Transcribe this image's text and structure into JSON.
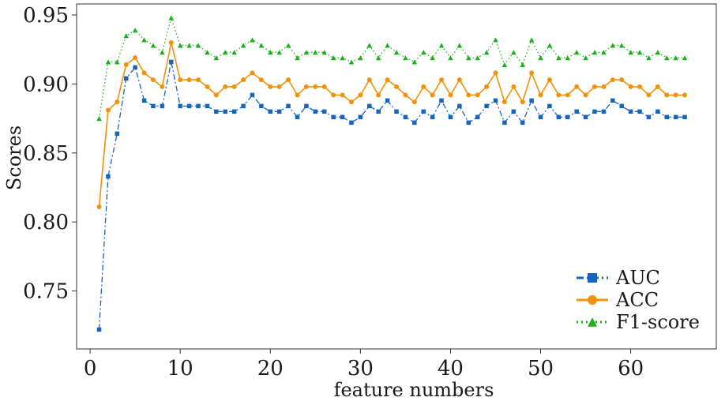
{
  "chart_data": {
    "type": "line",
    "xlabel": "feature numbers",
    "ylabel": "Scores",
    "xlim": [
      -1.5,
      69.5
    ],
    "ylim": [
      0.708,
      0.958
    ],
    "xticks": [
      0,
      10,
      20,
      30,
      40,
      50,
      60
    ],
    "yticks": [
      0.75,
      0.8,
      0.85,
      0.9,
      0.95
    ],
    "ytick_labels": [
      "0.75",
      "0.80",
      "0.85",
      "0.90",
      "0.95"
    ],
    "grid": false,
    "legend_position": "bottom-right",
    "x": [
      1,
      2,
      3,
      4,
      5,
      6,
      7,
      8,
      9,
      10,
      11,
      12,
      13,
      14,
      15,
      16,
      17,
      18,
      19,
      20,
      21,
      22,
      23,
      24,
      25,
      26,
      27,
      28,
      29,
      30,
      31,
      32,
      33,
      34,
      35,
      36,
      37,
      38,
      39,
      40,
      41,
      42,
      43,
      44,
      45,
      46,
      47,
      48,
      49,
      50,
      51,
      52,
      53,
      54,
      55,
      56,
      57,
      58,
      59,
      60,
      61,
      62,
      63,
      64,
      65,
      66
    ],
    "series": [
      {
        "name": "AUC",
        "color": "#1565c0",
        "marker": "square",
        "linestyle": "dashdot",
        "values": [
          0.722,
          0.833,
          0.864,
          0.904,
          0.912,
          0.888,
          0.884,
          0.884,
          0.916,
          0.884,
          0.884,
          0.884,
          0.884,
          0.88,
          0.88,
          0.88,
          0.884,
          0.892,
          0.884,
          0.88,
          0.88,
          0.884,
          0.876,
          0.884,
          0.88,
          0.88,
          0.876,
          0.876,
          0.872,
          0.876,
          0.884,
          0.88,
          0.888,
          0.88,
          0.876,
          0.872,
          0.88,
          0.876,
          0.888,
          0.876,
          0.884,
          0.872,
          0.876,
          0.884,
          0.888,
          0.872,
          0.88,
          0.872,
          0.888,
          0.876,
          0.884,
          0.876,
          0.876,
          0.88,
          0.876,
          0.88,
          0.88,
          0.888,
          0.884,
          0.88,
          0.88,
          0.876,
          0.88,
          0.876,
          0.876,
          0.876
        ]
      },
      {
        "name": "ACC",
        "color": "#f0920a",
        "marker": "circle",
        "linestyle": "solid",
        "values": [
          0.811,
          0.881,
          0.887,
          0.914,
          0.919,
          0.908,
          0.903,
          0.898,
          0.93,
          0.903,
          0.903,
          0.903,
          0.898,
          0.892,
          0.898,
          0.898,
          0.903,
          0.908,
          0.903,
          0.898,
          0.898,
          0.903,
          0.892,
          0.898,
          0.898,
          0.898,
          0.892,
          0.892,
          0.887,
          0.892,
          0.903,
          0.892,
          0.903,
          0.898,
          0.892,
          0.887,
          0.898,
          0.892,
          0.903,
          0.892,
          0.903,
          0.892,
          0.892,
          0.898,
          0.908,
          0.887,
          0.898,
          0.887,
          0.908,
          0.892,
          0.903,
          0.892,
          0.892,
          0.898,
          0.892,
          0.898,
          0.898,
          0.903,
          0.903,
          0.898,
          0.898,
          0.892,
          0.898,
          0.892,
          0.892,
          0.892
        ]
      },
      {
        "name": "F1-score",
        "color": "#1ab01a",
        "marker": "triangle",
        "linestyle": "dotted",
        "values": [
          0.875,
          0.916,
          0.916,
          0.935,
          0.939,
          0.932,
          0.928,
          0.923,
          0.948,
          0.928,
          0.928,
          0.928,
          0.923,
          0.919,
          0.923,
          0.923,
          0.928,
          0.932,
          0.928,
          0.923,
          0.923,
          0.928,
          0.919,
          0.923,
          0.923,
          0.923,
          0.919,
          0.919,
          0.916,
          0.919,
          0.928,
          0.919,
          0.928,
          0.923,
          0.919,
          0.916,
          0.923,
          0.919,
          0.928,
          0.919,
          0.928,
          0.919,
          0.919,
          0.923,
          0.932,
          0.914,
          0.923,
          0.914,
          0.932,
          0.919,
          0.928,
          0.919,
          0.919,
          0.923,
          0.919,
          0.923,
          0.923,
          0.928,
          0.928,
          0.923,
          0.923,
          0.919,
          0.923,
          0.919,
          0.919,
          0.919
        ]
      }
    ]
  }
}
